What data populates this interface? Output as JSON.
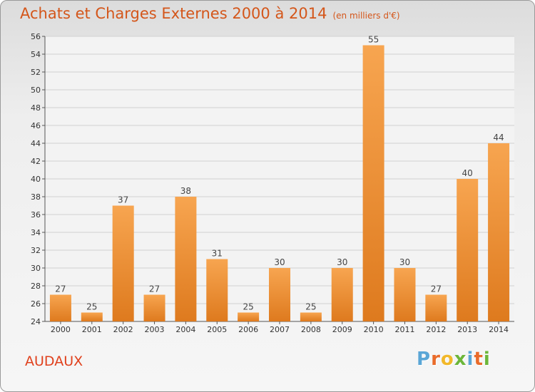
{
  "title": "Achats et Charges Externes 2000 à 2014",
  "subtitle": "(en milliers d'€)",
  "place": "AUDAUX",
  "logo": {
    "letters": [
      "P",
      "r",
      "o",
      "x",
      "i",
      "t",
      "i"
    ],
    "colors": [
      "#5aa6d6",
      "#e96b2a",
      "#f2b82a",
      "#6cb63a",
      "#5aa6d6",
      "#e96b2a",
      "#6cb63a"
    ]
  },
  "colors": {
    "bar_light": "#f7a550",
    "bar_dark": "#de7a1e",
    "title": "#d4561a",
    "grid": "#d0d0d0"
  },
  "chart_data": {
    "type": "bar",
    "categories": [
      "2000",
      "2001",
      "2002",
      "2003",
      "2004",
      "2005",
      "2006",
      "2007",
      "2008",
      "2009",
      "2010",
      "2011",
      "2012",
      "2013",
      "2014"
    ],
    "values": [
      27,
      25,
      37,
      27,
      38,
      31,
      25,
      30,
      25,
      30,
      55,
      30,
      27,
      40,
      44
    ],
    "data_labels": [
      "27",
      "25",
      "37",
      "27",
      "38",
      "31",
      "25",
      "30",
      "25",
      "30",
      "55",
      "30",
      "27",
      "40",
      "44"
    ],
    "ylim": [
      24,
      56
    ],
    "yticks": [
      24,
      26,
      28,
      30,
      32,
      34,
      36,
      38,
      40,
      42,
      44,
      46,
      48,
      50,
      52,
      54,
      56
    ],
    "grid": true,
    "xlabel": "",
    "ylabel": ""
  }
}
